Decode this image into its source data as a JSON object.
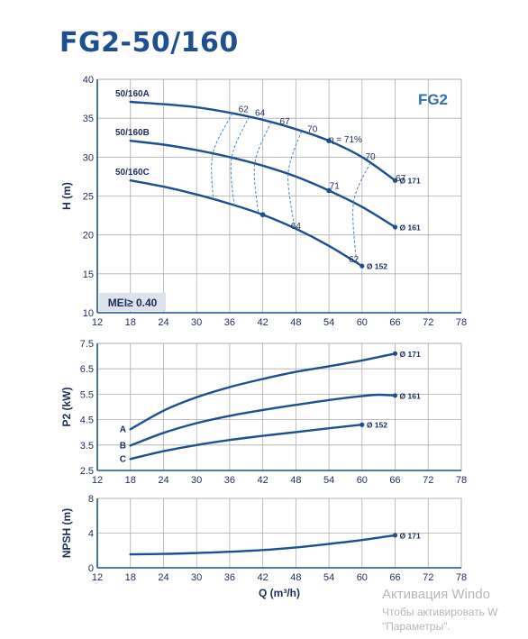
{
  "title": "FG2-50/160",
  "colors": {
    "curve": "#1d4f91",
    "axis": "#1d4f91",
    "text": "#1d2d5a",
    "grid": "#aeaeae",
    "efficiency_lines": "#4a86c5",
    "badge_bg": "#dde3ec"
  },
  "watermark": {
    "line1": "Активация Windo",
    "line2": "Чтобы активировать W",
    "line3": "\"Параметры\"."
  },
  "chart_data": [
    {
      "type": "line",
      "panel": "H",
      "badge": "FG2",
      "mei": "MEI≥ 0.40",
      "ylabel": "H (m)",
      "xlim": [
        12,
        78
      ],
      "xticks": [
        "12",
        "18",
        "24",
        "30",
        "36",
        "42",
        "48",
        "54",
        "60",
        "66",
        "72",
        "78"
      ],
      "ylim": [
        10,
        40
      ],
      "yticks": [
        "10",
        "15",
        "20",
        "25",
        "30",
        "35",
        "40"
      ],
      "grid": true,
      "series": [
        {
          "name": "50/160A",
          "end_label": "Ø 171",
          "x": [
            18,
            24,
            30,
            36,
            42,
            48,
            54,
            60,
            66
          ],
          "y": [
            37.1,
            36.8,
            36.4,
            35.7,
            34.8,
            33.6,
            32.1,
            30.0,
            27.0
          ]
        },
        {
          "name": "50/160B",
          "end_label": "Ø 161",
          "x": [
            18,
            24,
            30,
            36,
            42,
            48,
            54,
            60,
            66
          ],
          "y": [
            32.1,
            31.6,
            30.9,
            30.0,
            28.9,
            27.5,
            25.7,
            23.6,
            21.0
          ]
        },
        {
          "name": "50/160C",
          "end_label": "Ø 152",
          "x": [
            18,
            24,
            30,
            36,
            42,
            48,
            54,
            60
          ],
          "y": [
            27.0,
            26.2,
            25.2,
            24.0,
            22.6,
            20.8,
            18.6,
            16.0
          ]
        }
      ],
      "efficiency_labels": [
        "62",
        "64",
        "67",
        "70",
        "η = 71%",
        "70",
        "67",
        "71",
        "64",
        "62"
      ],
      "efficiency_points": [
        {
          "label": "62",
          "at": [
            38.5,
            35.8
          ]
        },
        {
          "label": "64",
          "at": [
            41.5,
            35.3
          ]
        },
        {
          "label": "67",
          "at": [
            46,
            34.2
          ]
        },
        {
          "label": "70",
          "at": [
            51,
            33.2
          ]
        },
        {
          "label": "η = 71%",
          "at": [
            57,
            31.9
          ]
        },
        {
          "label": "70",
          "at": [
            61.5,
            29.7
          ]
        },
        {
          "label": "67",
          "at": [
            67,
            26.9
          ]
        },
        {
          "label": "71",
          "at": [
            55,
            25.9
          ]
        },
        {
          "label": "64",
          "at": [
            48,
            20.8
          ]
        },
        {
          "label": "62",
          "at": [
            58.5,
            16.5
          ]
        }
      ],
      "bep_markers": [
        [
          54,
          32.1
        ],
        [
          54,
          25.7
        ],
        [
          42,
          22.6
        ]
      ]
    },
    {
      "type": "line",
      "panel": "P2",
      "ylabel": "P2 (kW)",
      "xlim": [
        12,
        78
      ],
      "xticks": [
        "12",
        "18",
        "24",
        "30",
        "36",
        "42",
        "48",
        "54",
        "60",
        "66",
        "72",
        "78"
      ],
      "ylim": [
        2.5,
        7.5
      ],
      "yticks": [
        "2.5",
        "3.5",
        "4.5",
        "5.5",
        "6.5",
        "7.5"
      ],
      "grid": true,
      "series": [
        {
          "name": "A",
          "end_label": "Ø 171",
          "x": [
            18,
            24,
            30,
            36,
            42,
            48,
            54,
            60,
            66
          ],
          "y": [
            4.12,
            4.85,
            5.38,
            5.78,
            6.1,
            6.38,
            6.6,
            6.83,
            7.1
          ]
        },
        {
          "name": "B",
          "end_label": "Ø 161",
          "x": [
            18,
            24,
            30,
            36,
            42,
            48,
            54,
            60,
            63,
            66
          ],
          "y": [
            3.48,
            3.98,
            4.36,
            4.65,
            4.88,
            5.08,
            5.27,
            5.43,
            5.48,
            5.45
          ]
        },
        {
          "name": "C",
          "end_label": "Ø 152",
          "x": [
            18,
            24,
            30,
            36,
            42,
            48,
            54,
            60
          ],
          "y": [
            2.95,
            3.26,
            3.5,
            3.7,
            3.86,
            4.01,
            4.16,
            4.3
          ]
        }
      ]
    },
    {
      "type": "line",
      "panel": "NPSH",
      "ylabel": "NPSH (m)",
      "xlabel": "Q (m³/h)",
      "xlim": [
        12,
        78
      ],
      "xticks": [
        "12",
        "18",
        "24",
        "30",
        "36",
        "42",
        "48",
        "54",
        "60",
        "66",
        "72",
        "78"
      ],
      "ylim": [
        0,
        8
      ],
      "yticks": [
        "0",
        "4",
        "8"
      ],
      "grid": true,
      "series": [
        {
          "name": "",
          "end_label": "Ø 171",
          "x": [
            18,
            24,
            30,
            36,
            42,
            48,
            54,
            60,
            66
          ],
          "y": [
            1.55,
            1.6,
            1.7,
            1.85,
            2.05,
            2.35,
            2.75,
            3.2,
            3.75
          ]
        }
      ]
    }
  ]
}
